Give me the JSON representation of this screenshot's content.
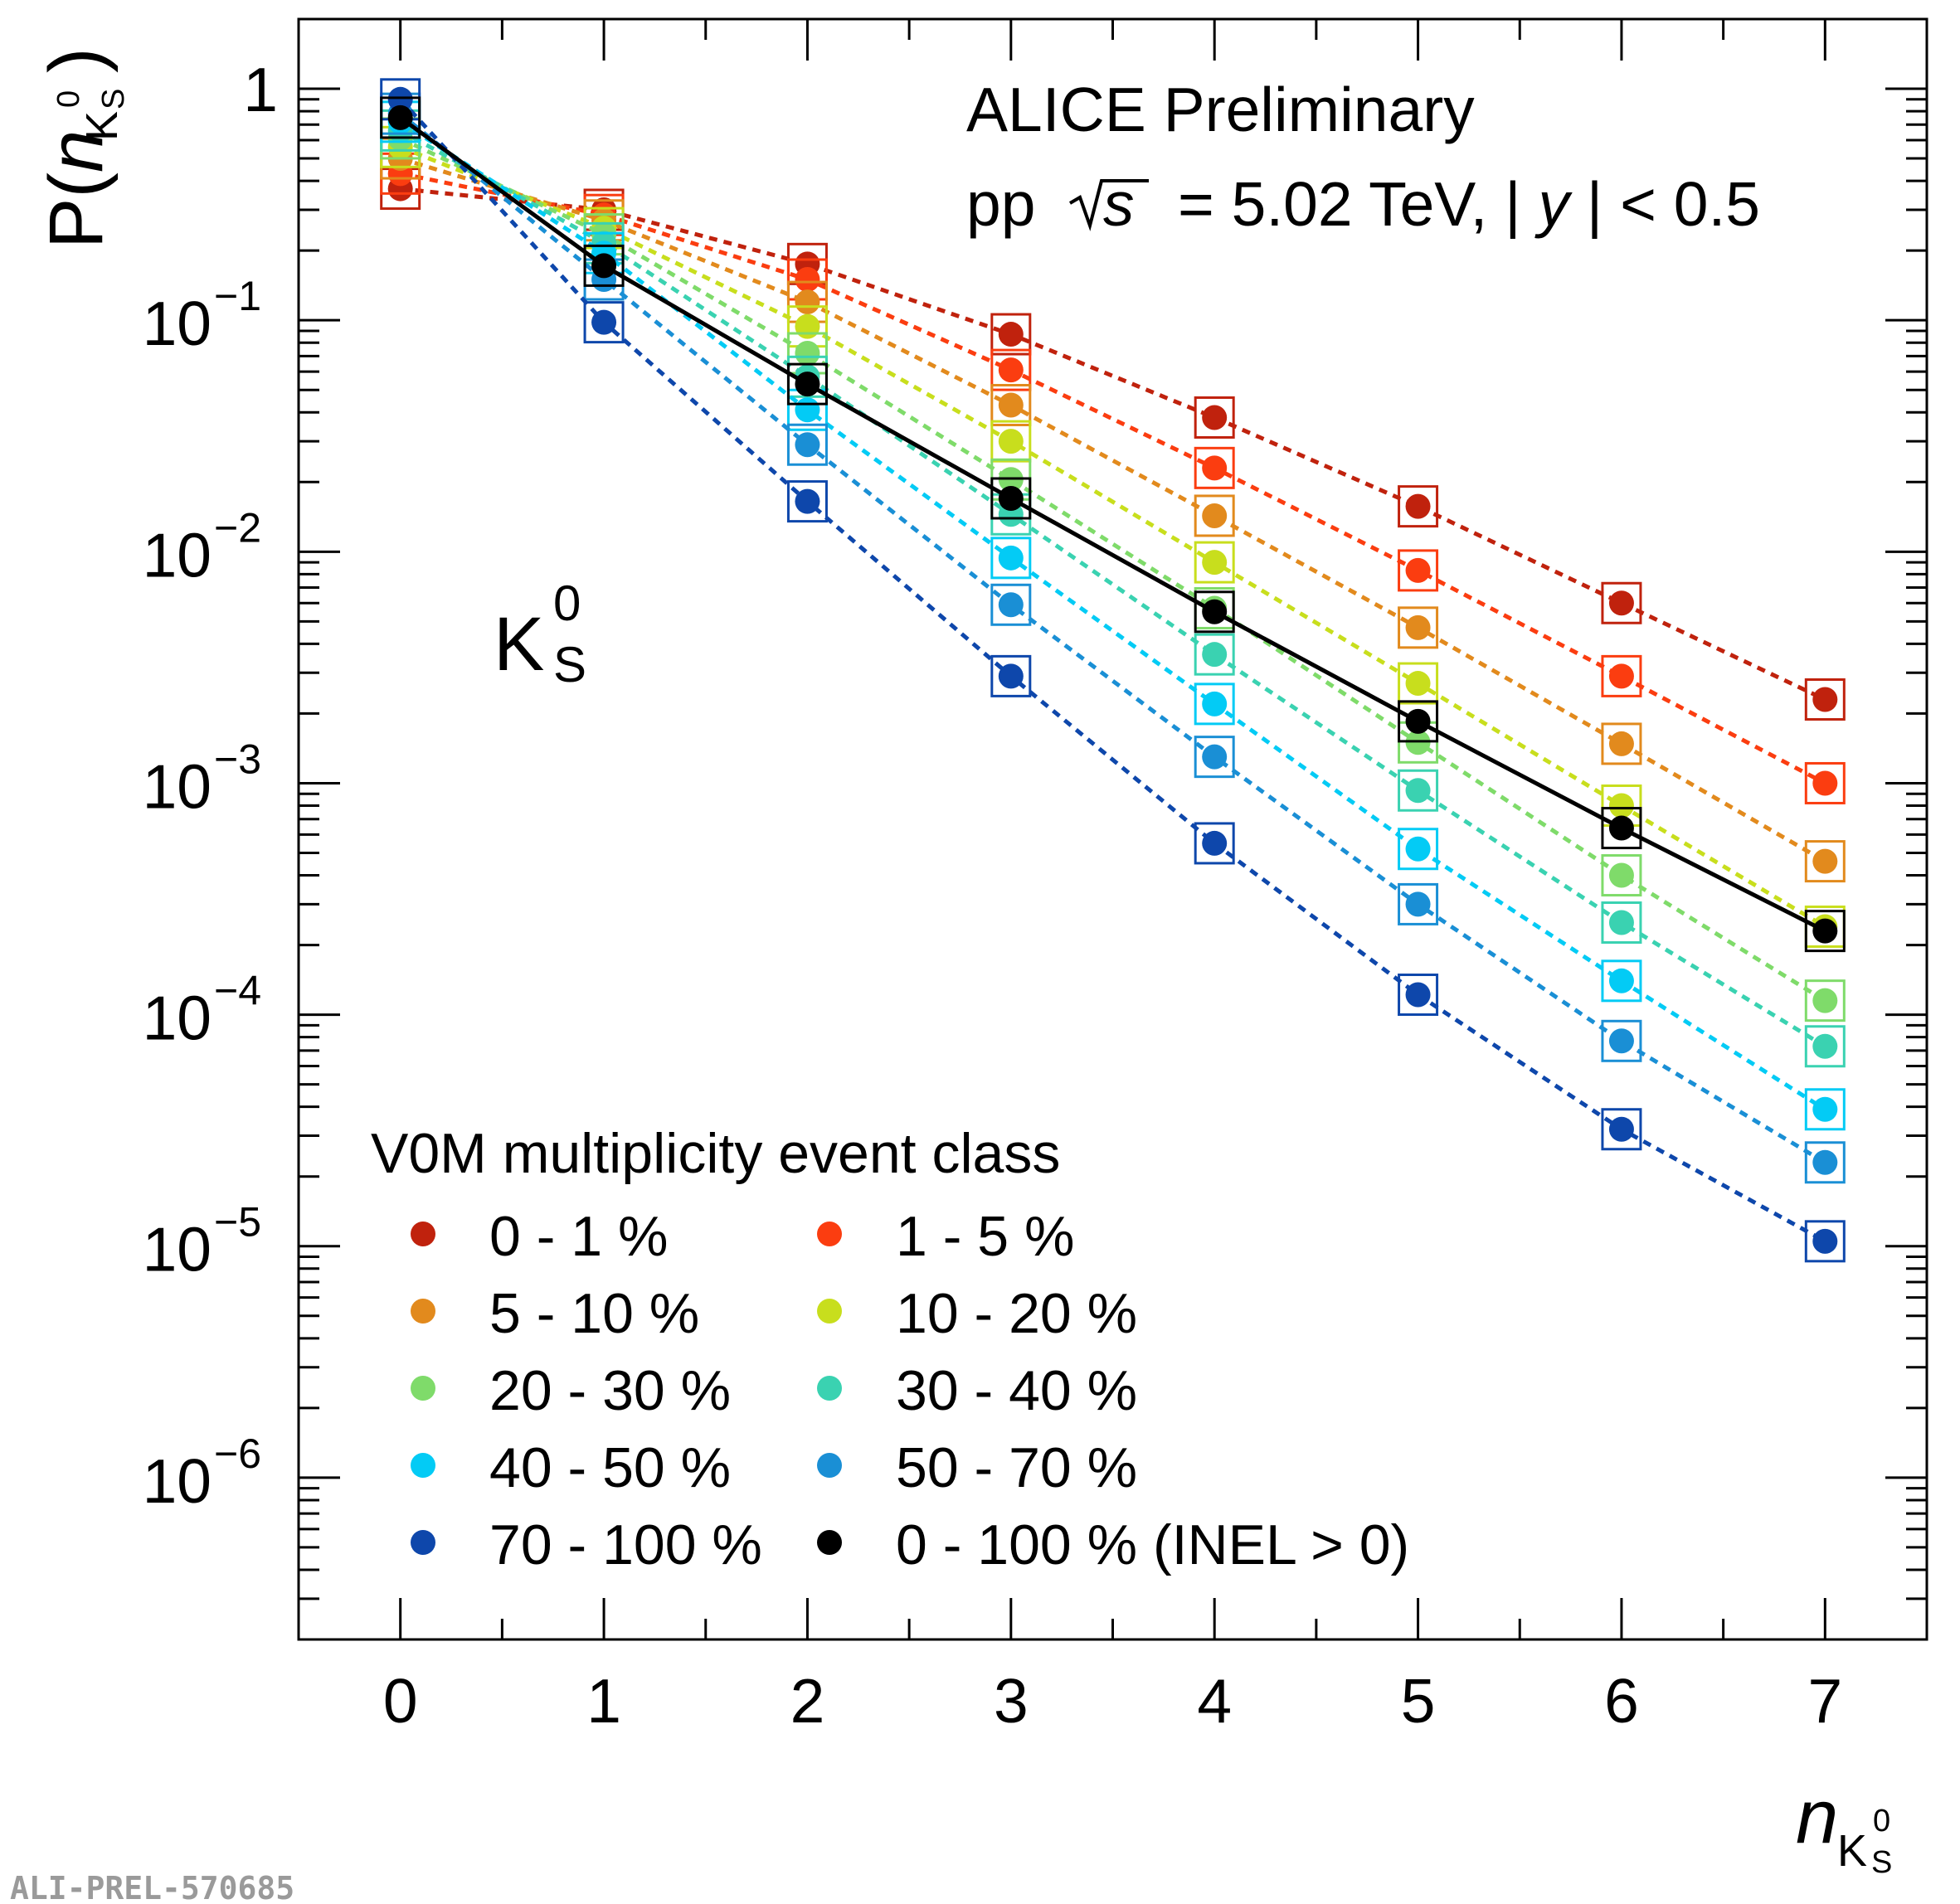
{
  "chart_data": {
    "type": "scatter",
    "y_scale": "log",
    "xlabel": "n",
    "xlabel_sub": "K",
    "xlabel_subsub": "S",
    "xlabel_sup": "0",
    "ylabel_prefix": "P(",
    "ylabel_var": "n",
    "ylabel_sub": "K",
    "ylabel_subsub": "S",
    "ylabel_sup": "0",
    "ylabel_suffix": ")",
    "xlim": [
      -0.5,
      7.5
    ],
    "ylim": [
      2e-07,
      2
    ],
    "x_ticks": [
      0,
      1,
      2,
      3,
      4,
      5,
      6,
      7
    ],
    "y_ticks": [
      {
        "value": 1,
        "label": "1",
        "exp": ""
      },
      {
        "value": 0.1,
        "label": "10",
        "exp": "−1"
      },
      {
        "value": 0.01,
        "label": "10",
        "exp": "−2"
      },
      {
        "value": 0.001,
        "label": "10",
        "exp": "−3"
      },
      {
        "value": 0.0001,
        "label": "10",
        "exp": "−4"
      },
      {
        "value": 1e-05,
        "label": "10",
        "exp": "−5"
      },
      {
        "value": 1e-06,
        "label": "10",
        "exp": "−6"
      }
    ],
    "experiment": "ALICE Preliminary",
    "energy_label_pre": "pp",
    "energy_label_s": "s",
    "energy_label_mid": "= 5.02 TeV, |",
    "energy_label_y": "y",
    "energy_label_post": "| < 0.5",
    "particle_main": "K",
    "particle_sub": "S",
    "particle_sup": "0",
    "legend_title": "V0M multiplicity event class",
    "watermark": "ALI-PREL-570685",
    "x": [
      0,
      1,
      2,
      3,
      4,
      5,
      6,
      7
    ],
    "series": [
      {
        "name": "0 - 1 %",
        "color": "#c0220d",
        "dashed": true,
        "values": [
          0.37,
          0.3,
          0.175,
          0.087,
          0.038,
          0.0157,
          0.006,
          0.0023
        ]
      },
      {
        "name": "1 - 5 %",
        "color": "#fb3d10",
        "dashed": true,
        "values": [
          0.43,
          0.285,
          0.15,
          0.061,
          0.023,
          0.0083,
          0.0029,
          0.001
        ]
      },
      {
        "name": "5 - 10 %",
        "color": "#e28a1d",
        "dashed": true,
        "values": [
          0.5,
          0.27,
          0.12,
          0.043,
          0.0143,
          0.0047,
          0.00148,
          0.00046
        ]
      },
      {
        "name": "10 - 20 %",
        "color": "#c8de1d",
        "dashed": true,
        "values": [
          0.56,
          0.25,
          0.094,
          0.03,
          0.009,
          0.0027,
          0.0008,
          0.00024
        ]
      },
      {
        "name": "20 - 30 %",
        "color": "#7fdb6a",
        "dashed": true,
        "values": [
          0.61,
          0.235,
          0.072,
          0.0205,
          0.0057,
          0.0015,
          0.0004,
          0.000115
        ]
      },
      {
        "name": "30 - 40 %",
        "color": "#3ad2b1",
        "dashed": true,
        "values": [
          0.66,
          0.215,
          0.057,
          0.0145,
          0.0036,
          0.00093,
          0.00025,
          7.3e-05
        ]
      },
      {
        "name": "40 - 50 %",
        "color": "#03cbf5",
        "dashed": true,
        "values": [
          0.72,
          0.195,
          0.041,
          0.0094,
          0.0022,
          0.00052,
          0.00014,
          3.9e-05
        ]
      },
      {
        "name": "50 - 70 %",
        "color": "#1a8fd5",
        "dashed": true,
        "values": [
          0.78,
          0.15,
          0.029,
          0.0059,
          0.0013,
          0.0003,
          7.7e-05,
          2.3e-05
        ]
      },
      {
        "name": "70 - 100 %",
        "color": "#0e47ab",
        "dashed": true,
        "values": [
          0.9,
          0.098,
          0.0165,
          0.0029,
          0.00055,
          0.000122,
          3.2e-05,
          1.05e-05
        ]
      },
      {
        "name": "0 - 100 % (INEL > 0)",
        "color": "#000000",
        "dashed": false,
        "values": [
          0.75,
          0.172,
          0.053,
          0.017,
          0.0055,
          0.00185,
          0.00064,
          0.00023
        ]
      }
    ]
  }
}
